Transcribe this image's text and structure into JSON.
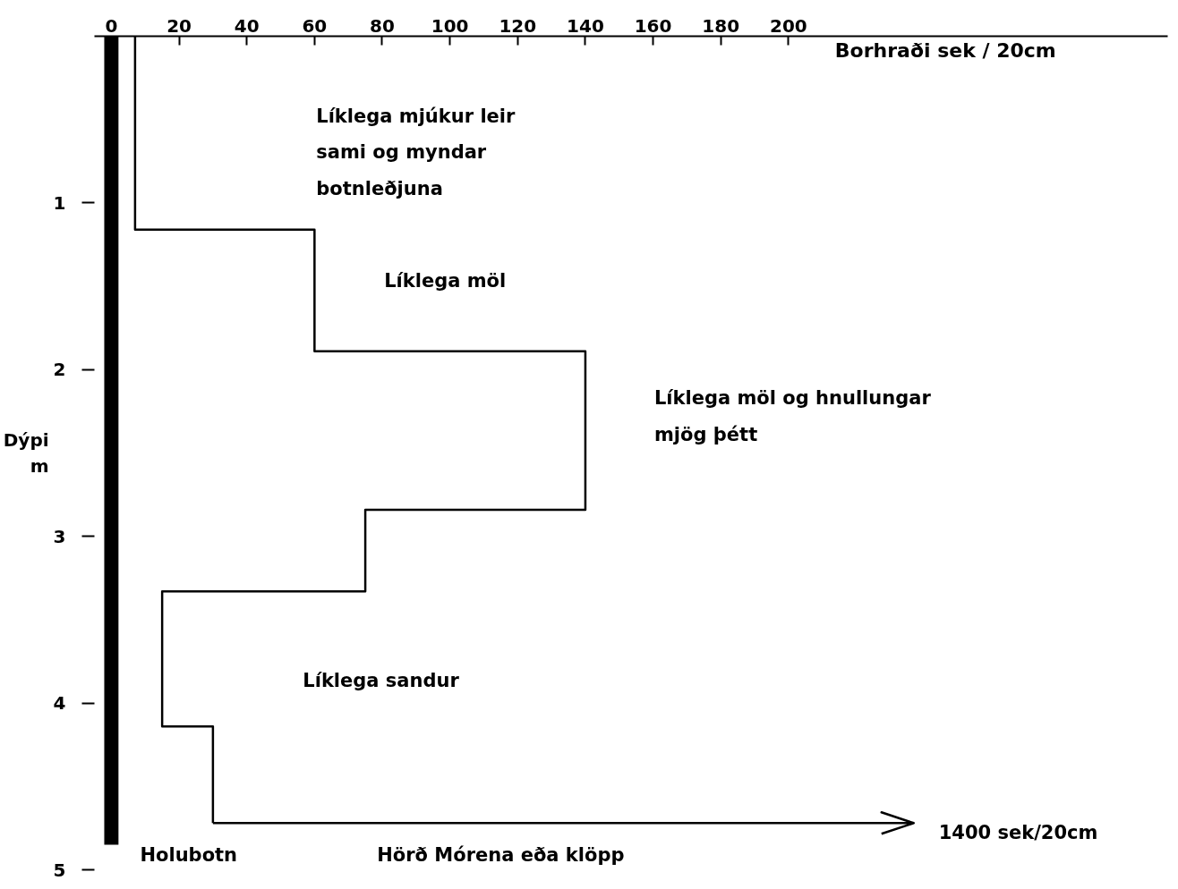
{
  "chart_data": {
    "type": "line",
    "xlabel": "Borhraði sek / 20cm",
    "ylabel": "Dýpi\nm",
    "xlim": [
      -5,
      312
    ],
    "xticks": [
      0,
      20,
      40,
      60,
      80,
      100,
      120,
      140,
      160,
      180,
      200
    ],
    "ylim": [
      5,
      0
    ],
    "yticks": [
      1,
      2,
      3,
      4,
      5
    ],
    "grid": false,
    "marker": "none",
    "line_style": "solid",
    "series": [
      {
        "color": "#000000",
        "x": [
          7,
          7,
          60,
          60,
          140,
          140,
          75,
          75,
          15,
          15,
          30,
          30
        ],
        "values": [
          0,
          1.16,
          1.16,
          1.89,
          1.89,
          2.84,
          2.84,
          3.33,
          3.33,
          4.14,
          4.14,
          4.72
        ]
      },
      {
        "color": "#000000",
        "type": "bar",
        "x": [
          0
        ],
        "values": [
          4.85
        ]
      }
    ],
    "annotations": [
      "Líklega mjúkur leir\nsami og myndar\nbotnleðjuna",
      "Líklega möl",
      "Líklega möl og hnullungar\nmjög þétt",
      "Líklega sandur",
      "Holubotn",
      "Hörð Mórena eða klöpp",
      "1400 sek/20cm"
    ]
  }
}
